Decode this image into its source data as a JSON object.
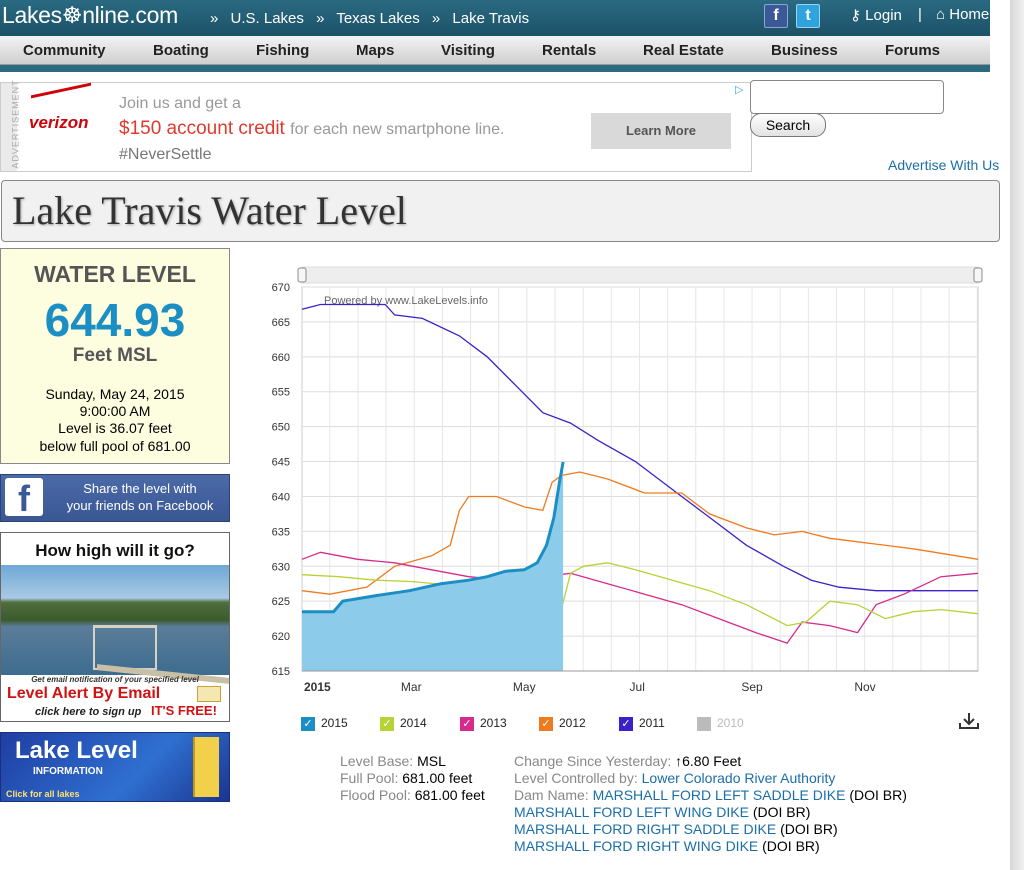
{
  "header": {
    "logo": "Lakes☸nline.com",
    "breadcrumb": [
      "U.S. Lakes",
      "Texas Lakes",
      "Lake Travis"
    ],
    "breadcrumb_sep": "»",
    "login": "Login",
    "home": "Home",
    "pipe": "|"
  },
  "nav": [
    "Community",
    "Boating",
    "Fishing",
    "Maps",
    "Visiting",
    "Rentals",
    "Real Estate",
    "Business",
    "Forums"
  ],
  "ad": {
    "side_label": "ADVERTISEMENT",
    "brand": "verizon",
    "line1": "Join us and get a",
    "line2_highlight": "$150 account credit",
    "line2_rest": "for each new smartphone line.",
    "line3": "#NeverSettle",
    "button": "Learn More"
  },
  "search": {
    "button": "Search",
    "placeholder": ""
  },
  "advertise_link": "Advertise With Us",
  "page_title": "Lake Travis Water Level",
  "water_level": {
    "heading": "WATER LEVEL",
    "value": "644.93",
    "unit": "Feet MSL",
    "date": "Sunday, May 24, 2015",
    "time": "9:00:00 AM",
    "level_text": "Level is 36.07 feet",
    "below_text": "below full pool of 681.00"
  },
  "facebook_share": {
    "line1": "Share the level with",
    "line2": "your friends on Facebook"
  },
  "alert": {
    "question": "How high will it go?",
    "small": "Get email notification of your specified level",
    "title": "Level Alert By Email",
    "click": "click here to sign up",
    "free": "IT'S FREE!"
  },
  "lake_level_banner": {
    "title": "Lake Level",
    "subtitle": "INFORMATION",
    "link": "Click for all lakes"
  },
  "chart_data": {
    "type": "line",
    "watermark": "Powered by www.LakeLevels.info",
    "ylim": [
      615,
      670
    ],
    "yticks": [
      615,
      620,
      625,
      630,
      635,
      640,
      645,
      650,
      655,
      660,
      665,
      670
    ],
    "xlim": [
      0,
      365
    ],
    "xticks": [
      {
        "label": "2015",
        "day": 0,
        "bold": true
      },
      {
        "label": "Mar",
        "day": 59
      },
      {
        "label": "May",
        "day": 120
      },
      {
        "label": "Jul",
        "day": 181
      },
      {
        "label": "Sep",
        "day": 243
      },
      {
        "label": "Nov",
        "day": 304
      }
    ],
    "grid": true,
    "series": [
      {
        "name": "2015",
        "color": "#1b8ec4",
        "fill": "#8ccbea",
        "points": [
          [
            0,
            623.5
          ],
          [
            17,
            623.5
          ],
          [
            22,
            625
          ],
          [
            40,
            625.8
          ],
          [
            58,
            626.5
          ],
          [
            75,
            627.5
          ],
          [
            90,
            628
          ],
          [
            100,
            628.5
          ],
          [
            110,
            629.3
          ],
          [
            120,
            629.5
          ],
          [
            127,
            630.5
          ],
          [
            132,
            633
          ],
          [
            136,
            637
          ],
          [
            139,
            642
          ],
          [
            141,
            644.93
          ]
        ]
      },
      {
        "name": "2014",
        "color": "#b5d334",
        "points": [
          [
            0,
            628.8
          ],
          [
            20,
            628.5
          ],
          [
            40,
            628
          ],
          [
            60,
            627.8
          ],
          [
            80,
            627.3
          ],
          [
            100,
            626.5
          ],
          [
            115,
            625.5
          ],
          [
            130,
            624
          ],
          [
            140,
            623.8
          ],
          [
            145,
            629
          ],
          [
            152,
            630
          ],
          [
            165,
            630.5
          ],
          [
            180,
            629.5
          ],
          [
            200,
            628
          ],
          [
            220,
            626.5
          ],
          [
            240,
            624.5
          ],
          [
            262,
            621.5
          ],
          [
            272,
            622
          ],
          [
            285,
            625
          ],
          [
            300,
            624.5
          ],
          [
            315,
            622.5
          ],
          [
            330,
            623.5
          ],
          [
            345,
            623.8
          ],
          [
            365,
            623.2
          ]
        ]
      },
      {
        "name": "2013",
        "color": "#d62a8c",
        "points": [
          [
            0,
            631
          ],
          [
            10,
            632
          ],
          [
            30,
            631
          ],
          [
            50,
            630.5
          ],
          [
            70,
            629.5
          ],
          [
            90,
            628.5
          ],
          [
            110,
            628
          ],
          [
            130,
            628.5
          ],
          [
            145,
            629
          ],
          [
            165,
            627.5
          ],
          [
            185,
            626
          ],
          [
            205,
            624.5
          ],
          [
            225,
            622.5
          ],
          [
            245,
            620.5
          ],
          [
            262,
            619
          ],
          [
            270,
            622
          ],
          [
            285,
            621.5
          ],
          [
            300,
            620.5
          ],
          [
            310,
            624.5
          ],
          [
            325,
            626
          ],
          [
            345,
            628.5
          ],
          [
            365,
            629
          ]
        ]
      },
      {
        "name": "2012",
        "color": "#f07a1e",
        "points": [
          [
            0,
            626.5
          ],
          [
            15,
            626
          ],
          [
            35,
            627
          ],
          [
            50,
            630
          ],
          [
            70,
            631.5
          ],
          [
            80,
            633
          ],
          [
            85,
            638
          ],
          [
            90,
            640
          ],
          [
            105,
            640
          ],
          [
            120,
            638.5
          ],
          [
            130,
            638
          ],
          [
            135,
            642
          ],
          [
            140,
            643
          ],
          [
            150,
            643.5
          ],
          [
            165,
            642.5
          ],
          [
            185,
            640.5
          ],
          [
            205,
            640.5
          ],
          [
            220,
            637.5
          ],
          [
            240,
            635.5
          ],
          [
            255,
            634.5
          ],
          [
            270,
            635
          ],
          [
            285,
            634
          ],
          [
            300,
            633.5
          ],
          [
            330,
            632.5
          ],
          [
            365,
            631
          ]
        ]
      },
      {
        "name": "2011",
        "color": "#3a22c9",
        "points": [
          [
            0,
            666.8
          ],
          [
            10,
            667.5
          ],
          [
            25,
            667.5
          ],
          [
            45,
            667.5
          ],
          [
            50,
            666
          ],
          [
            65,
            665.5
          ],
          [
            85,
            663
          ],
          [
            100,
            660
          ],
          [
            115,
            656
          ],
          [
            130,
            652
          ],
          [
            145,
            650.5
          ],
          [
            160,
            648
          ],
          [
            180,
            645
          ],
          [
            200,
            641
          ],
          [
            220,
            637
          ],
          [
            240,
            633
          ],
          [
            260,
            630
          ],
          [
            275,
            628
          ],
          [
            290,
            627
          ],
          [
            310,
            626.5
          ],
          [
            330,
            626.5
          ],
          [
            350,
            626.5
          ],
          [
            365,
            626.5
          ]
        ]
      },
      {
        "name": "2010",
        "color": "#bbbbbb",
        "disabled": true,
        "points": []
      }
    ]
  },
  "legend": [
    {
      "label": "2015",
      "color": "#1b8ec4",
      "checked": true
    },
    {
      "label": "2014",
      "color": "#b5d334",
      "checked": true
    },
    {
      "label": "2013",
      "color": "#d62a8c",
      "checked": true
    },
    {
      "label": "2012",
      "color": "#f07a1e",
      "checked": true
    },
    {
      "label": "2011",
      "color": "#3a22c9",
      "checked": true
    },
    {
      "label": "2010",
      "color": "#bbbbbb",
      "checked": false
    }
  ],
  "info": {
    "level_base_label": "Level Base:",
    "level_base": "MSL",
    "full_pool_label": "Full Pool:",
    "full_pool": "681.00 feet",
    "flood_pool_label": "Flood Pool:",
    "flood_pool": "681.00 feet",
    "change_label": "Change Since Yesterday:",
    "change_arrow": "↑",
    "change": "6.80 Feet",
    "controlled_label": "Level Controlled by:",
    "controlled": "Lower Colorado River Authority",
    "dam_label": "Dam Name:",
    "dams": [
      {
        "name": "MARSHALL FORD LEFT SADDLE DIKE",
        "suffix": "(DOI BR)"
      },
      {
        "name": "MARSHALL FORD LEFT WING DIKE",
        "suffix": "(DOI BR)"
      },
      {
        "name": "MARSHALL FORD RIGHT SADDLE DIKE",
        "suffix": "(DOI BR)"
      },
      {
        "name": "MARSHALL FORD RIGHT WING DIKE",
        "suffix": "(DOI BR)"
      }
    ]
  },
  "colors": {
    "header": "#1c5268",
    "accent": "#1b8ec4",
    "link": "#1a6fa8",
    "alert_red": "#d01212"
  }
}
